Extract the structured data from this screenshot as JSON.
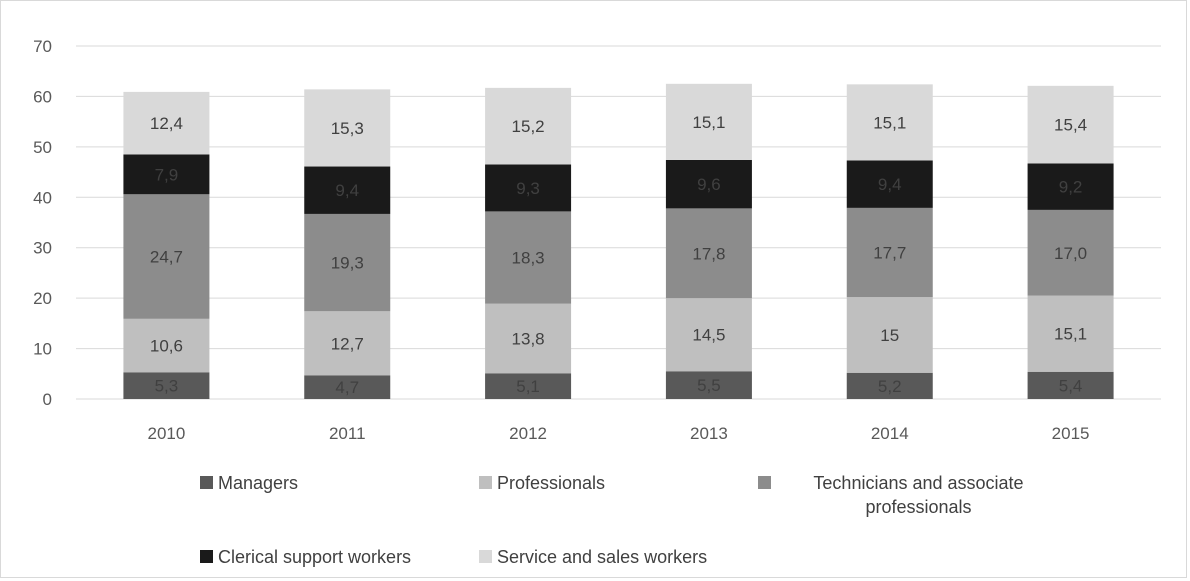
{
  "chart_data": {
    "type": "bar",
    "stacked": true,
    "categories": [
      "2010",
      "2011",
      "2012",
      "2013",
      "2014",
      "2015"
    ],
    "ylim": [
      0,
      70
    ],
    "yticks": [
      0,
      10,
      20,
      30,
      40,
      50,
      60,
      70
    ],
    "grid": true,
    "legend_position": "bottom",
    "series": [
      {
        "name": "Managers",
        "color": "#595959",
        "label_color": "#404040",
        "values": [
          5.3,
          4.7,
          5.1,
          5.5,
          5.2,
          5.4
        ],
        "labels": [
          "5,3",
          "4,7",
          "5,1",
          "5,5",
          "5,2",
          "5,4"
        ]
      },
      {
        "name": "Professionals",
        "color": "#bfbfbf",
        "label_color": "#404040",
        "values": [
          10.6,
          12.7,
          13.8,
          14.5,
          15,
          15.1
        ],
        "labels": [
          "10,6",
          "12,7",
          "13,8",
          "14,5",
          "15",
          "15,1"
        ]
      },
      {
        "name": "Technicians and associate professionals",
        "color": "#8c8c8c",
        "label_color": "#404040",
        "values": [
          24.7,
          19.3,
          18.3,
          17.8,
          17.7,
          17.0
        ],
        "labels": [
          "24,7",
          "19,3",
          "18,3",
          "17,8",
          "17,7",
          "17,0"
        ]
      },
      {
        "name": "Clerical support workers",
        "color": "#1a1a1a",
        "label_color": "#404040",
        "values": [
          7.9,
          9.4,
          9.3,
          9.6,
          9.4,
          9.2
        ],
        "labels": [
          "7,9",
          "9,4",
          "9,3",
          "9,6",
          "9,4",
          "9,2"
        ]
      },
      {
        "name": "Service and sales workers",
        "color": "#d9d9d9",
        "label_color": "#404040",
        "values": [
          12.4,
          15.3,
          15.2,
          15.1,
          15.1,
          15.4
        ],
        "labels": [
          "12,4",
          "15,3",
          "15,2",
          "15,1",
          "15,1",
          "15,4"
        ]
      }
    ]
  }
}
